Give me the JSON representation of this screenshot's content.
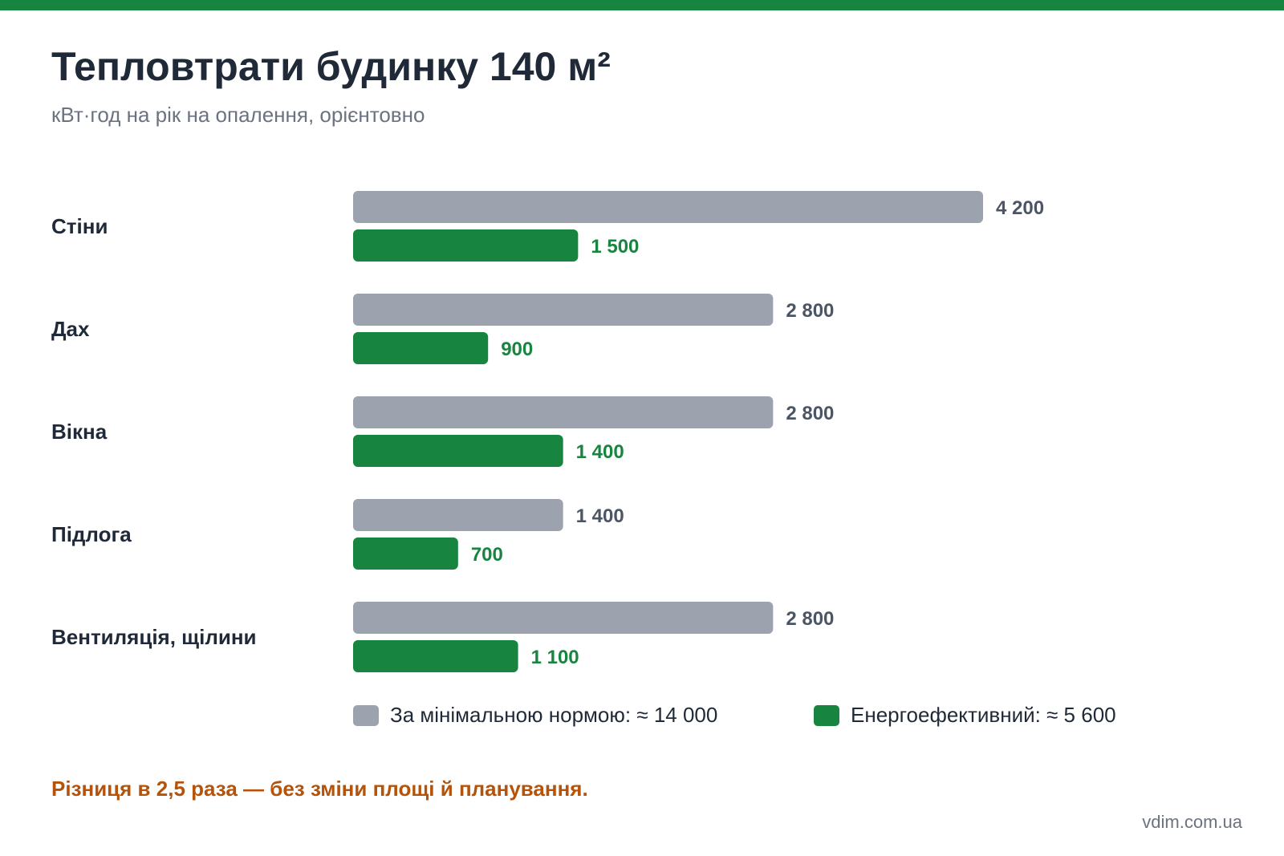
{
  "header": {
    "title": "Тепловтрати будинку 140 м²",
    "subtitle": "кВт·год на рік на опалення, орієнтовно"
  },
  "chart_data": {
    "type": "bar",
    "orientation": "horizontal",
    "title": "Тепловтрати будинку 140 м²",
    "subtitle": "кВт·год на рік на опалення, орієнтовно",
    "categories": [
      "Стіни",
      "Дах",
      "Вікна",
      "Підлога",
      "Вентиляція, щілини"
    ],
    "series": [
      {
        "name": "За мінімальною нормою",
        "color": "#9ca3af",
        "values": [
          4200,
          2800,
          2800,
          1400,
          2800
        ],
        "labels": [
          "4 200",
          "2 800",
          "2 800",
          "1 400",
          "2 800"
        ]
      },
      {
        "name": "Енергоефективний",
        "color": "#17843f",
        "values": [
          1500,
          900,
          1400,
          700,
          1100
        ],
        "labels": [
          "1 500",
          "900",
          "1 400",
          "700",
          "1 100"
        ]
      }
    ],
    "xlim": [
      0,
      4200
    ],
    "grid": false,
    "legend_position": "bottom"
  },
  "legend": {
    "items": [
      {
        "label": "За мінімальною нормою: ≈ 14 000",
        "color": "#9ca3af"
      },
      {
        "label": "Енергоефективний: ≈ 5 600",
        "color": "#17843f"
      }
    ]
  },
  "note": "Різниця в 2,5 раза — без зміни площі й планування.",
  "source": "vdim.com.ua"
}
